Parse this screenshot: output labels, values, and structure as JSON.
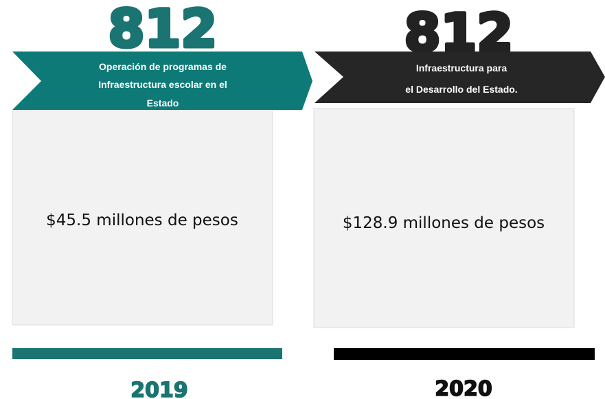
{
  "panels": [
    {
      "code": "812",
      "title_lines": [
        "Operación de programas de",
        "Infraestructura escolar en el",
        "Estado"
      ],
      "amount": "$45.5 millones de pesos",
      "year": "2019"
    },
    {
      "code": "812",
      "title_lines": [
        "Infraestructura para",
        "el Desarrollo del Estado."
      ],
      "amount": "$128.9 millones de pesos",
      "year": "2020"
    }
  ]
}
